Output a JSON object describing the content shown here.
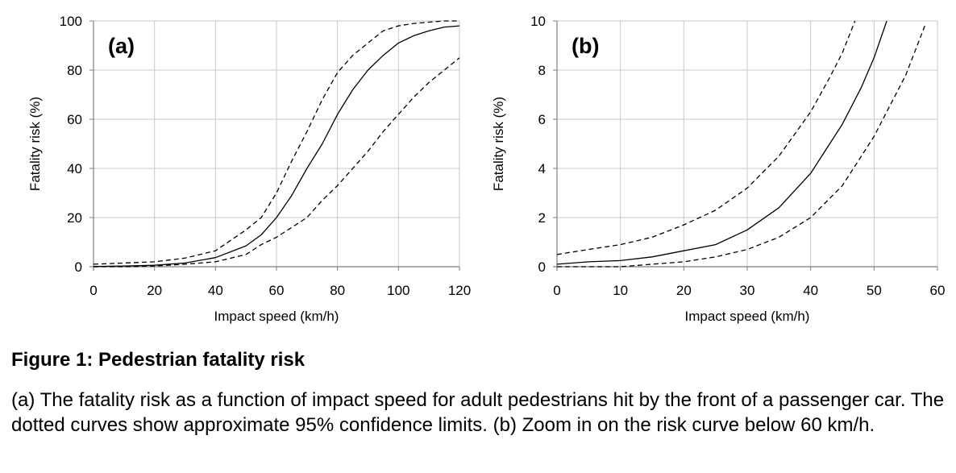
{
  "figure": {
    "title": "Figure 1: Pedestrian fatality risk",
    "caption": "(a) The fatality risk as a function of impact speed for adult pedestrians hit by the front of a passenger car. The dotted curves show approximate 95% confidence limits. (b) Zoom in on the risk curve below 60 km/h."
  },
  "colors": {
    "curve": "#000000",
    "grid": "#c8c8c8",
    "axis": "#7f7f7f"
  },
  "chart_data": [
    {
      "type": "line",
      "panel_label": "(a)",
      "xlabel": "Impact speed (km/h)",
      "ylabel": "Fatality risk (%)",
      "xlim": [
        0,
        120
      ],
      "ylim": [
        0,
        100
      ],
      "xticks": [
        0,
        20,
        40,
        60,
        80,
        100,
        120
      ],
      "yticks": [
        0,
        20,
        40,
        60,
        80,
        100
      ],
      "grid": true,
      "series": [
        {
          "style": "solid",
          "x": [
            0,
            10,
            20,
            30,
            40,
            50,
            55,
            60,
            65,
            70,
            75,
            80,
            85,
            90,
            95,
            100,
            105,
            110,
            115,
            120
          ],
          "y": [
            0.1,
            0.3,
            0.6,
            1.5,
            3.7,
            8.5,
            13,
            20,
            29,
            40,
            50,
            62,
            72,
            80,
            86,
            91,
            94,
            96,
            97.5,
            98
          ]
        },
        {
          "style": "dashed",
          "x": [
            0,
            10,
            20,
            30,
            40,
            50,
            55,
            60,
            65,
            70,
            75,
            80,
            85,
            90,
            95,
            100,
            105,
            110,
            115,
            120
          ],
          "y": [
            1,
            1.5,
            2,
            3.5,
            6.5,
            15,
            20,
            30,
            43,
            55,
            68,
            79,
            86,
            91,
            96,
            98,
            99,
            99.5,
            100,
            100
          ]
        },
        {
          "style": "dashed",
          "x": [
            0,
            10,
            20,
            30,
            40,
            50,
            55,
            60,
            65,
            70,
            75,
            80,
            85,
            90,
            95,
            100,
            105,
            110,
            115,
            120
          ],
          "y": [
            0,
            0,
            0.3,
            1,
            2,
            5,
            9,
            12,
            16,
            20,
            27,
            33,
            40,
            47,
            55,
            62,
            69,
            75,
            80,
            85
          ]
        }
      ]
    },
    {
      "type": "line",
      "panel_label": "(b)",
      "xlabel": "Impact speed (km/h)",
      "ylabel": "Fatality risk (%)",
      "xlim": [
        0,
        60
      ],
      "ylim": [
        0,
        10
      ],
      "xticks": [
        0,
        10,
        20,
        30,
        40,
        50,
        60
      ],
      "yticks": [
        0,
        2,
        4,
        6,
        8,
        10
      ],
      "grid": true,
      "series": [
        {
          "style": "solid",
          "x": [
            0,
            5,
            10,
            15,
            20,
            25,
            30,
            35,
            40,
            45,
            48,
            50,
            52
          ],
          "y": [
            0.1,
            0.2,
            0.25,
            0.4,
            0.65,
            0.9,
            1.5,
            2.4,
            3.8,
            5.8,
            7.3,
            8.5,
            10
          ]
        },
        {
          "style": "dashed",
          "x": [
            0,
            5,
            10,
            15,
            20,
            25,
            30,
            35,
            40,
            43,
            45,
            47
          ],
          "y": [
            0.5,
            0.7,
            0.9,
            1.2,
            1.7,
            2.3,
            3.2,
            4.5,
            6.3,
            7.7,
            8.7,
            10
          ]
        },
        {
          "style": "dashed",
          "x": [
            0,
            10,
            15,
            20,
            25,
            30,
            35,
            40,
            45,
            50,
            55,
            58
          ],
          "y": [
            0,
            0,
            0.1,
            0.2,
            0.4,
            0.7,
            1.2,
            2.0,
            3.3,
            5.3,
            7.8,
            9.8
          ]
        }
      ]
    }
  ]
}
